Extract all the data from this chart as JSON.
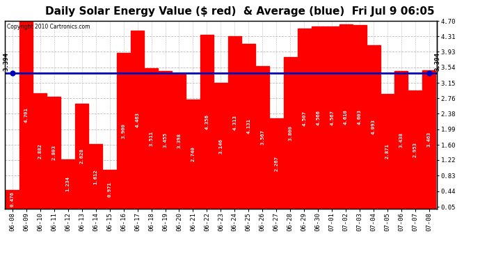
{
  "title": "Daily Solar Energy Value ($ red)  & Average (blue)  Fri Jul 9 06:05",
  "copyright": "Copyright 2010 Cartronics.com",
  "average": 3.394,
  "bar_color": "#FF0000",
  "avg_line_color": "#0000BB",
  "background_color": "#FFFFFF",
  "plot_bg_color": "#FFFFFF",
  "grid_color": "#BBBBBB",
  "categories": [
    "06-08",
    "06-09",
    "06-10",
    "06-11",
    "06-12",
    "06-13",
    "06-14",
    "06-15",
    "06-16",
    "06-17",
    "06-18",
    "06-19",
    "06-20",
    "06-21",
    "06-22",
    "06-23",
    "06-24",
    "06-25",
    "06-26",
    "06-27",
    "06-28",
    "06-29",
    "06-30",
    "07-01",
    "07-02",
    "07-03",
    "07-04",
    "07-05",
    "07-06",
    "07-07",
    "07-08"
  ],
  "values": [
    0.476,
    4.701,
    2.882,
    2.803,
    1.234,
    2.628,
    1.612,
    0.971,
    3.9,
    4.463,
    3.511,
    3.455,
    3.398,
    2.74,
    4.356,
    3.146,
    4.313,
    4.131,
    3.567,
    2.267,
    3.8,
    4.507,
    4.566,
    4.567,
    4.61,
    4.603,
    4.093,
    2.871,
    3.438,
    2.953,
    3.463
  ],
  "ylim": [
    0,
    4.7
  ],
  "yticks_right": [
    0.05,
    0.44,
    0.83,
    1.22,
    1.6,
    1.99,
    2.38,
    2.76,
    3.15,
    3.54,
    3.93,
    4.31,
    4.7
  ],
  "title_fontsize": 11,
  "tick_label_fontsize": 6.5,
  "value_label_fontsize": 5.2,
  "avg_label": "3.394"
}
